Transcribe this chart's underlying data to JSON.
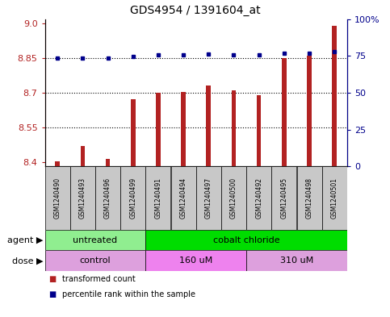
{
  "title": "GDS4954 / 1391604_at",
  "samples": [
    "GSM1240490",
    "GSM1240493",
    "GSM1240496",
    "GSM1240499",
    "GSM1240491",
    "GSM1240494",
    "GSM1240497",
    "GSM1240500",
    "GSM1240492",
    "GSM1240495",
    "GSM1240498",
    "GSM1240501"
  ],
  "transformed_counts": [
    8.401,
    8.47,
    8.413,
    8.672,
    8.7,
    8.703,
    8.73,
    8.712,
    8.69,
    8.85,
    8.862,
    8.99
  ],
  "percentile_values": [
    73.5,
    73.5,
    73.5,
    74.5,
    75.5,
    75.8,
    76.5,
    75.8,
    75.8,
    77.0,
    77.0,
    78.0
  ],
  "ylim_left": [
    8.38,
    9.02
  ],
  "ylim_right": [
    0,
    100
  ],
  "yticks_left": [
    8.4,
    8.55,
    8.7,
    8.85,
    9.0
  ],
  "yticks_right": [
    0,
    25,
    50,
    75,
    100
  ],
  "bar_color": "#b22222",
  "dot_color": "#00008b",
  "bar_width": 0.18,
  "agent_groups": [
    {
      "label": "untreated",
      "start": 0,
      "end": 4,
      "color": "#90ee90"
    },
    {
      "label": "cobalt chloride",
      "start": 4,
      "end": 12,
      "color": "#00dd00"
    }
  ],
  "dose_groups": [
    {
      "label": "control",
      "start": 0,
      "end": 4,
      "color": "#dda0dd"
    },
    {
      "label": "160 uM",
      "start": 4,
      "end": 8,
      "color": "#ee82ee"
    },
    {
      "label": "310 uM",
      "start": 8,
      "end": 12,
      "color": "#dda0dd"
    }
  ],
  "legend_entries": [
    "transformed count",
    "percentile rank within the sample"
  ],
  "legend_colors": [
    "#b22222",
    "#00008b"
  ],
  "background_color": "#ffffff"
}
